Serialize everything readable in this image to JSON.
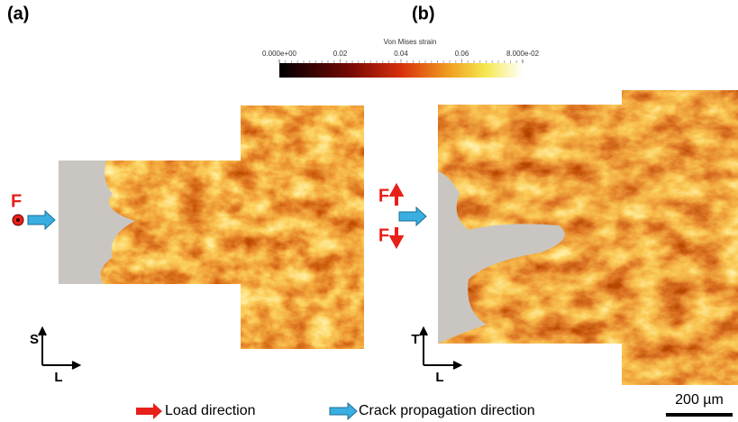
{
  "panel_a": {
    "label": "(a)",
    "force_label": "F",
    "axis_vertical": "S",
    "axis_horizontal": "L"
  },
  "panel_b": {
    "label": "(b)",
    "force_labels": [
      "F",
      "F"
    ],
    "axis_vertical": "T",
    "axis_horizontal": "L"
  },
  "colorbar": {
    "title": "Von Mises strain",
    "range": [
      0,
      0.08
    ],
    "ticks": [
      {
        "value": 0,
        "label": "0.000e+00"
      },
      0.02,
      0.04,
      0.06,
      {
        "value": 0.08,
        "label": "8.000e-02"
      }
    ]
  },
  "legend": [
    "Load direction",
    "Crack propagation direction"
  ],
  "scale_bar": "200 µm"
}
